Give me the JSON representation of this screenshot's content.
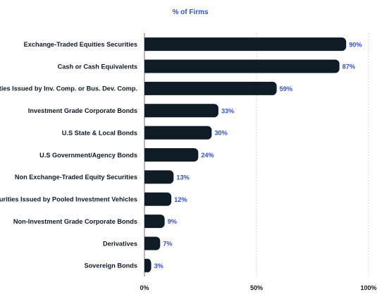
{
  "chart_data": {
    "type": "bar",
    "orientation": "horizontal",
    "title": "% of Firms",
    "categories": [
      "Exchange-Traded Equities Securities",
      "Cash or Cash Equivalents",
      "Securities Issued by Inv. Comp. or Bus. Dev. Comp.",
      "Investment Grade Corporate Bonds",
      "U.S State & Local Bonds",
      "U.S Government/Agency Bonds",
      "Non Exchange-Traded Equity Securities",
      "Securities Issued by Pooled Investment Vehicles",
      "Non-Investment Grade Corporate Bonds",
      "Derivatives",
      "Sovereign Bonds"
    ],
    "values": [
      90,
      87,
      59,
      33,
      30,
      24,
      13,
      12,
      9,
      7,
      3
    ],
    "value_labels": [
      "90%",
      "87%",
      "59%",
      "33%",
      "30%",
      "24%",
      "13%",
      "12%",
      "9%",
      "7%",
      "3%"
    ],
    "xlim": [
      0,
      100
    ],
    "x_ticks": [
      0,
      50,
      100
    ],
    "x_tick_labels": [
      "0%",
      "50%",
      "100%"
    ],
    "grid": true,
    "bar_color": "#0f1c26",
    "label_color": "#3552c8"
  }
}
